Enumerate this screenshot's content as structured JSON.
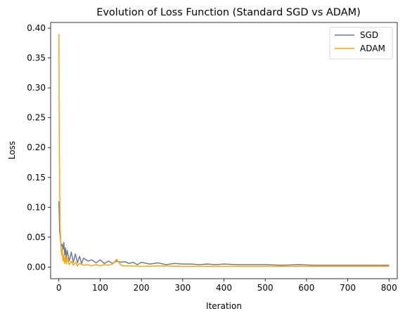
{
  "chart_data": {
    "type": "line",
    "title": "Evolution of Loss Function (Standard SGD vs ADAM)",
    "xlabel": "Iteration",
    "ylabel": "Loss",
    "xlim": [
      -20,
      820
    ],
    "ylim": [
      -0.0195,
      0.4095
    ],
    "xticks": [
      0,
      100,
      200,
      300,
      400,
      500,
      600,
      700,
      800
    ],
    "xtick_labels": [
      "0",
      "100",
      "200",
      "300",
      "400",
      "500",
      "600",
      "700",
      "800"
    ],
    "yticks": [
      0.0,
      0.05,
      0.1,
      0.15,
      0.2,
      0.25,
      0.3,
      0.35,
      0.4
    ],
    "ytick_labels": [
      "0.00",
      "0.05",
      "0.10",
      "0.15",
      "0.20",
      "0.25",
      "0.30",
      "0.35",
      "0.40"
    ],
    "grid": false,
    "legend_position": "top-right",
    "series": [
      {
        "name": "SGD",
        "color": "#6b7c9a",
        "x": [
          0,
          2,
          4,
          6,
          8,
          10,
          12,
          14,
          16,
          18,
          20,
          25,
          30,
          35,
          40,
          45,
          50,
          55,
          60,
          70,
          80,
          90,
          100,
          110,
          120,
          130,
          140,
          150,
          160,
          170,
          180,
          190,
          200,
          220,
          240,
          260,
          280,
          300,
          320,
          340,
          360,
          380,
          400,
          430,
          460,
          500,
          540,
          580,
          620,
          660,
          700,
          740,
          780,
          800
        ],
        "values": [
          0.11,
          0.06,
          0.045,
          0.035,
          0.038,
          0.03,
          0.041,
          0.02,
          0.032,
          0.015,
          0.028,
          0.01,
          0.025,
          0.008,
          0.022,
          0.007,
          0.018,
          0.006,
          0.015,
          0.01,
          0.012,
          0.007,
          0.012,
          0.006,
          0.01,
          0.006,
          0.01,
          0.008,
          0.009,
          0.006,
          0.008,
          0.004,
          0.008,
          0.005,
          0.007,
          0.004,
          0.006,
          0.005,
          0.005,
          0.004,
          0.005,
          0.004,
          0.005,
          0.004,
          0.004,
          0.004,
          0.003,
          0.004,
          0.003,
          0.003,
          0.003,
          0.003,
          0.003,
          0.003
        ]
      },
      {
        "name": "ADAM",
        "color": "#ffa500",
        "x": [
          0,
          1,
          2,
          3,
          4,
          5,
          6,
          7,
          8,
          10,
          12,
          14,
          16,
          18,
          20,
          25,
          30,
          35,
          40,
          45,
          50,
          60,
          70,
          80,
          90,
          100,
          110,
          120,
          130,
          140,
          150,
          160,
          180,
          200,
          250,
          300,
          350,
          400,
          450,
          500,
          550,
          600,
          650,
          700,
          750,
          800
        ],
        "values": [
          0.39,
          0.2,
          0.12,
          0.07,
          0.05,
          0.035,
          0.025,
          0.02,
          0.03,
          0.01,
          0.02,
          0.006,
          0.018,
          0.005,
          0.015,
          0.004,
          0.01,
          0.003,
          0.008,
          0.002,
          0.006,
          0.003,
          0.004,
          0.002,
          0.004,
          0.002,
          0.004,
          0.003,
          0.005,
          0.013,
          0.003,
          0.002,
          0.002,
          0.001,
          0.002,
          0.001,
          0.001,
          0.001,
          0.001,
          0.001,
          0.001,
          0.001,
          0.001,
          0.001,
          0.001,
          0.001
        ]
      }
    ]
  }
}
